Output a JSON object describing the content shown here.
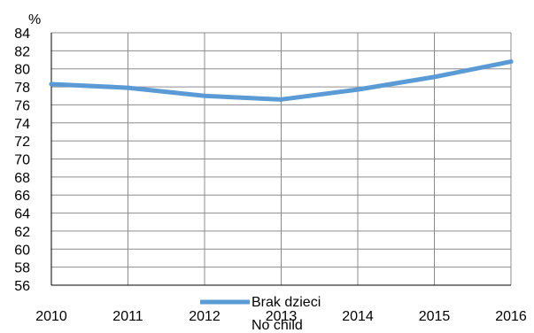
{
  "chart_data": {
    "type": "line",
    "title": "",
    "xlabel": "",
    "ylabel": "%",
    "x": [
      "2010",
      "2011",
      "2012",
      "2013",
      "2014",
      "2015",
      "2016"
    ],
    "ylim": [
      56,
      84
    ],
    "yticks": [
      "56",
      "58",
      "60",
      "62",
      "64",
      "66",
      "68",
      "70",
      "72",
      "74",
      "76",
      "78",
      "80",
      "82",
      "84"
    ],
    "grid": true,
    "legend_position": "bottom",
    "series": [
      {
        "name": "Brak dzieci",
        "name_secondary": "No child",
        "color": "#5b9bd5",
        "values": [
          78.3,
          77.9,
          77.0,
          76.6,
          77.7,
          79.1,
          80.8
        ]
      }
    ]
  }
}
